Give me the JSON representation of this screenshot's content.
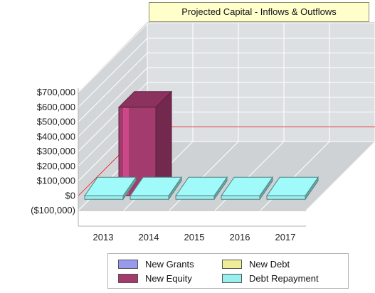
{
  "chart_data": {
    "type": "bar",
    "title": "Projected Capital - Inflows & Outflows",
    "xlabel": "",
    "ylabel": "",
    "categories": [
      "2013",
      "2014",
      "2015",
      "2016",
      "2017"
    ],
    "series": [
      {
        "name": "New Grants",
        "values": [
          0,
          0,
          0,
          0,
          0
        ],
        "color": "#9999ee"
      },
      {
        "name": "New Equity",
        "values": [
          600000,
          0,
          0,
          0,
          0
        ],
        "color": "#a33b6e"
      },
      {
        "name": "New Debt",
        "values": [
          0,
          0,
          0,
          0,
          0
        ],
        "color": "#eeee99"
      },
      {
        "name": "Debt Repayment",
        "values": [
          -30000,
          -30000,
          -30000,
          -30000,
          -30000
        ],
        "color": "#99eeee"
      }
    ],
    "yticks": [
      "$700,000",
      "$600,000",
      "$500,000",
      "$400,000",
      "$300,000",
      "$200,000",
      "$100,000",
      "$0",
      "($100,000)"
    ],
    "ytick_values": [
      700000,
      600000,
      500000,
      400000,
      300000,
      200000,
      100000,
      0,
      -100000
    ],
    "ylim": [
      -100000,
      700000
    ],
    "reference_line": {
      "value": 400000,
      "color": "#e03030"
    },
    "grid": true,
    "legend_position": "bottom",
    "style": "3d"
  }
}
